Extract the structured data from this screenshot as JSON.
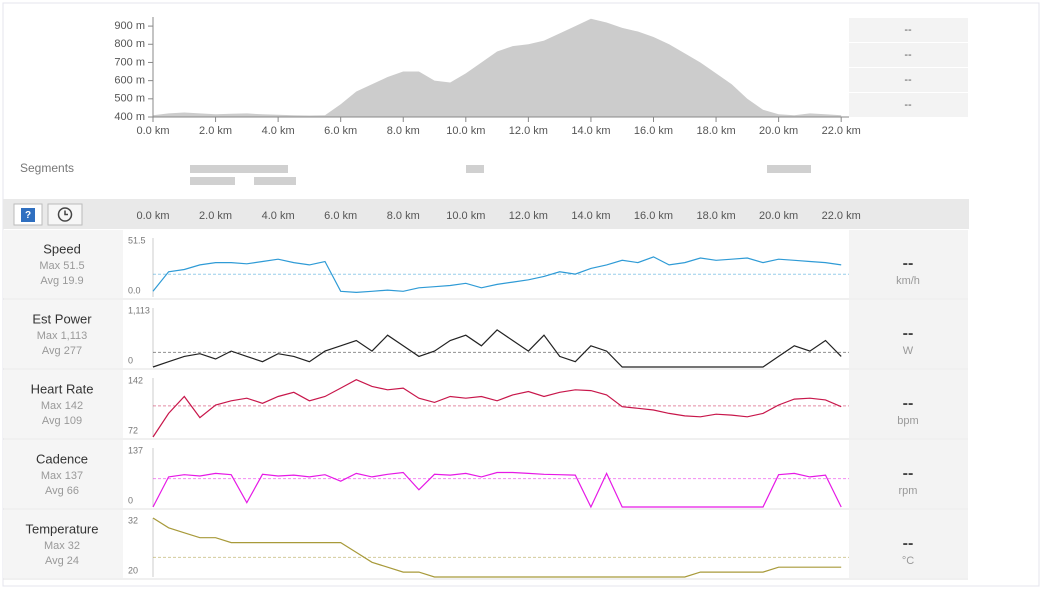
{
  "elevation": {
    "type": "area",
    "color": "#cccccc",
    "x": [
      0,
      0.5,
      1,
      1.5,
      2,
      2.5,
      3,
      3.5,
      4,
      4.5,
      5,
      5.5,
      6,
      6.5,
      7,
      7.5,
      8,
      8.5,
      9,
      9.5,
      10,
      10.5,
      11,
      11.5,
      12,
      12.5,
      13,
      13.5,
      14,
      14.5,
      15,
      15.5,
      16,
      16.5,
      17,
      17.5,
      18,
      18.5,
      19,
      19.5,
      20,
      20.5,
      21,
      21.5,
      22
    ],
    "values": [
      410,
      420,
      425,
      420,
      415,
      418,
      420,
      415,
      412,
      410,
      408,
      410,
      470,
      540,
      580,
      620,
      650,
      650,
      600,
      590,
      640,
      700,
      760,
      790,
      800,
      820,
      860,
      900,
      940,
      920,
      890,
      870,
      840,
      800,
      750,
      700,
      640,
      580,
      500,
      440,
      415,
      410,
      420,
      415,
      410
    ],
    "xlim": [
      0,
      22.25
    ],
    "ylim": [
      400,
      950
    ],
    "xticks": [
      {
        "value": 0,
        "label": "0.0 km"
      },
      {
        "value": 2,
        "label": "2.0 km"
      },
      {
        "value": 4,
        "label": "4.0 km"
      },
      {
        "value": 6,
        "label": "6.0 km"
      },
      {
        "value": 8,
        "label": "8.0 km"
      },
      {
        "value": 10,
        "label": "10.0 km"
      },
      {
        "value": 12,
        "label": "12.0 km"
      },
      {
        "value": 14,
        "label": "14.0 km"
      },
      {
        "value": 16,
        "label": "16.0 km"
      },
      {
        "value": 18,
        "label": "18.0 km"
      },
      {
        "value": 20,
        "label": "20.0 km"
      },
      {
        "value": 22,
        "label": "22.0 km"
      }
    ],
    "yticks": [
      {
        "value": 400,
        "label": "400 m"
      },
      {
        "value": 500,
        "label": "500 m"
      },
      {
        "value": 600,
        "label": "600 m"
      },
      {
        "value": 700,
        "label": "700 m"
      },
      {
        "value": 800,
        "label": "800 m"
      },
      {
        "value": 900,
        "label": "900 m"
      }
    ],
    "stats": [
      "--",
      "--",
      "--",
      "--"
    ]
  },
  "segments_label": "Segments",
  "streams": {
    "type": "line",
    "stat_labels": [
      "Max",
      "Avg"
    ],
    "x": [
      0,
      0.5,
      1,
      1.5,
      2,
      2.5,
      3,
      3.5,
      4,
      4.5,
      5,
      5.5,
      6,
      6.5,
      7,
      7.5,
      8,
      8.5,
      9,
      9.5,
      10,
      10.5,
      11,
      11.5,
      12,
      12.5,
      13,
      13.5,
      14,
      14.5,
      15,
      15.5,
      16,
      16.5,
      17,
      17.5,
      18,
      18.5,
      19,
      19.5,
      20,
      20.5,
      21,
      21.5,
      22
    ],
    "items": [
      {
        "name": "Speed",
        "unit": "km/h",
        "current": "--",
        "max": 51.5,
        "avg": 19.9,
        "color": "#2f9bd6",
        "ylim": [
          0,
          51.5
        ],
        "yticks": [
          {
            "value": 0,
            "label": "0.0"
          },
          51.5
        ],
        "values": [
          5,
          22,
          24,
          28,
          30,
          30,
          29,
          31,
          33,
          30,
          28,
          31,
          5,
          4,
          5,
          6,
          5,
          8,
          9,
          10,
          12,
          8,
          11,
          13,
          15,
          18,
          22,
          20,
          25,
          28,
          32,
          30,
          35,
          28,
          30,
          34,
          32,
          33,
          34,
          30,
          33,
          32,
          31,
          30,
          28
        ]
      },
      {
        "name": "Est Power",
        "unit": "W",
        "current": "--",
        "max": {
          "value": 1113,
          "label": "1,113"
        },
        "avg": 277,
        "color": "#222222",
        "ylim": [
          0,
          1113
        ],
        "yticks": [
          0,
          {
            "value": 1113,
            "label": "1,113"
          }
        ],
        "values": [
          0,
          100,
          200,
          250,
          150,
          300,
          200,
          100,
          250,
          200,
          100,
          300,
          400,
          500,
          300,
          600,
          400,
          200,
          300,
          500,
          600,
          400,
          700,
          500,
          300,
          600,
          200,
          100,
          400,
          300,
          0,
          0,
          0,
          0,
          0,
          0,
          0,
          0,
          0,
          0,
          200,
          400,
          300,
          500,
          200
        ]
      },
      {
        "name": "Heart Rate",
        "unit": "bpm",
        "current": "--",
        "max": 142,
        "avg": 109,
        "color": "#c8174b",
        "ylim": [
          72,
          142
        ],
        "yticks": [
          72,
          142
        ],
        "values": [
          72,
          100,
          120,
          95,
          110,
          115,
          118,
          112,
          120,
          125,
          115,
          120,
          130,
          140,
          132,
          128,
          130,
          118,
          113,
          120,
          118,
          120,
          115,
          122,
          126,
          120,
          125,
          128,
          127,
          122,
          108,
          106,
          104,
          100,
          97,
          96,
          99,
          98,
          96,
          100,
          110,
          117,
          118,
          116,
          108
        ]
      },
      {
        "name": "Cadence",
        "unit": "rpm",
        "current": "--",
        "max": 137,
        "avg": 66,
        "color": "#e619e6",
        "ylim": [
          0,
          137
        ],
        "yticks": [
          0,
          137
        ],
        "values": [
          0,
          70,
          75,
          72,
          78,
          75,
          10,
          76,
          72,
          74,
          70,
          75,
          60,
          78,
          70,
          76,
          80,
          40,
          76,
          74,
          78,
          70,
          80,
          80,
          78,
          76,
          75,
          74,
          0,
          78,
          0,
          0,
          0,
          0,
          0,
          0,
          0,
          0,
          0,
          0,
          75,
          78,
          70,
          74,
          0
        ]
      },
      {
        "name": "Temperature",
        "unit": "°C",
        "current": "--",
        "max": 32,
        "avg": 24,
        "color": "#a89a3a",
        "ylim": [
          20,
          32
        ],
        "yticks": [
          20,
          32
        ],
        "values": [
          32,
          30,
          29,
          28,
          28,
          27,
          27,
          27,
          27,
          27,
          27,
          27,
          27,
          25,
          23,
          22,
          21,
          21,
          20,
          20,
          20,
          20,
          20,
          20,
          20,
          20,
          20,
          20,
          20,
          20,
          20,
          20,
          20,
          20,
          20,
          21,
          21,
          21,
          21,
          21,
          22,
          22,
          22,
          22,
          22
        ]
      }
    ]
  }
}
